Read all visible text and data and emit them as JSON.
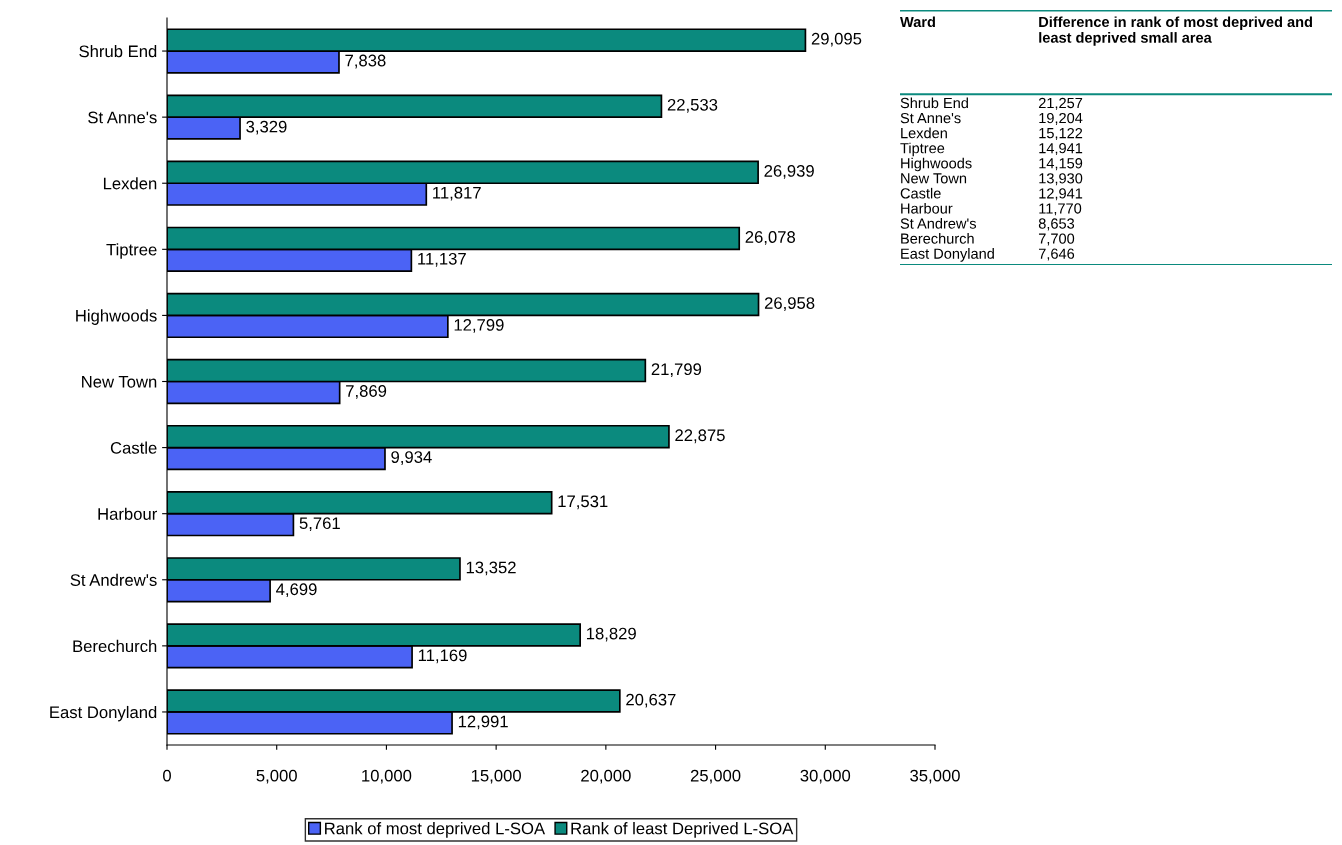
{
  "chart_data": [
    {
      "type": "bar",
      "orientation": "horizontal",
      "categories": [
        "Shrub End",
        "St Anne's",
        "Lexden",
        "Tiptree",
        "Highwoods",
        "New Town",
        "Castle",
        "Harbour",
        "St Andrew's",
        "Berechurch",
        "East Donyland"
      ],
      "series": [
        {
          "name": "Rank of most deprived L-SOA",
          "color": "#4b63f5",
          "values": [
            7838,
            3329,
            11817,
            11137,
            12799,
            7869,
            9934,
            5761,
            4699,
            11169,
            12991
          ],
          "value_labels": [
            "7,838",
            "3,329",
            "11,817",
            "11,137",
            "12,799",
            "7,869",
            "9,934",
            "5,761",
            "4,699",
            "11,169",
            "12,991"
          ]
        },
        {
          "name": "Rank of least Deprived L-SOA",
          "color": "#0b8a7e",
          "values": [
            29095,
            22533,
            26939,
            26078,
            26958,
            21799,
            22875,
            17531,
            13352,
            18829,
            20637
          ],
          "value_labels": [
            "29,095",
            "22,533",
            "26,939",
            "26,078",
            "26,958",
            "21,799",
            "22,875",
            "17,531",
            "13,352",
            "18,829",
            "20,637"
          ]
        }
      ],
      "xlim": [
        0,
        35000
      ],
      "xticks": [
        0,
        {
          "value": 5000,
          "label": "5,000"
        },
        {
          "value": 10000,
          "label": "10,000"
        },
        {
          "value": 15000,
          "label": "15,000"
        },
        {
          "value": 20000,
          "label": "20,000"
        },
        {
          "value": 25000,
          "label": "25,000"
        },
        {
          "value": 30000,
          "label": "30,000"
        },
        {
          "value": 35000,
          "label": "35,000"
        }
      ],
      "grid": false,
      "legend": "bottom"
    },
    {
      "type": "other",
      "annotations": [
        "Ward",
        "Difference in rank of most deprived and least deprived small area"
      ],
      "categories": [
        "Shrub End",
        "St Anne's",
        "Lexden",
        "Tiptree",
        "Highwoods",
        "New Town",
        "Castle",
        "Harbour",
        "St Andrew's",
        "Berechurch",
        "East Donyland"
      ],
      "value_labels": [
        "21,257",
        "19,204",
        "15,122",
        "14,941",
        "14,159",
        "13,930",
        "12,941",
        "11,770",
        "8,653",
        "7,700",
        "7,646"
      ],
      "color": "#0b8a7e"
    }
  ]
}
